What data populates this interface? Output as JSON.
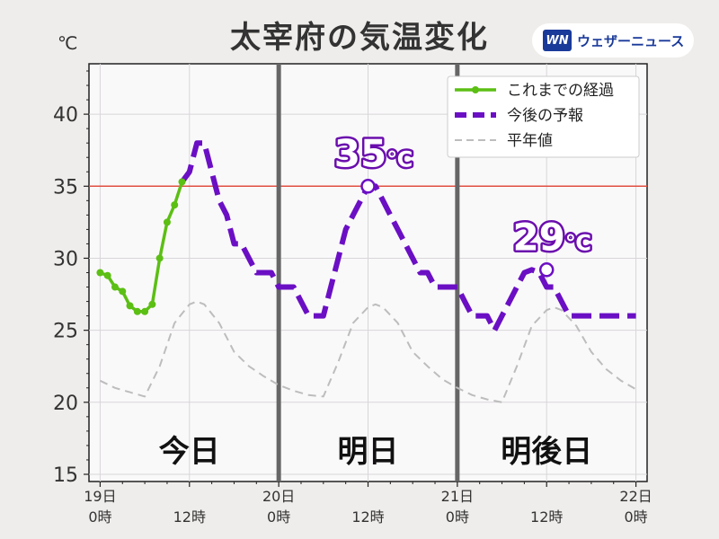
{
  "title": "太宰府の気温変化",
  "unit": "℃",
  "badge": {
    "logo": "WN",
    "text": "ウェザーニュース"
  },
  "colors": {
    "observed": "#5cbf14",
    "forecast": "#6b0fc4",
    "normal": "#bdbdbd",
    "threshold": "#e05040",
    "divider": "#666666",
    "plot_bg": "#faf9fa"
  },
  "chart_data": {
    "type": "line",
    "title": "太宰府の気温変化",
    "ylabel": "℃",
    "ylim": [
      14.5,
      43.5
    ],
    "xlim": [
      -1.5,
      73.5
    ],
    "yticks": [
      15,
      20,
      25,
      30,
      35,
      40
    ],
    "grid": true,
    "legend_position": "top-right",
    "x_ticks": [
      {
        "x": 0,
        "top": "19日",
        "bottom": "0時"
      },
      {
        "x": 12,
        "top": "",
        "bottom": "12時"
      },
      {
        "x": 24,
        "top": "20日",
        "bottom": "0時"
      },
      {
        "x": 36,
        "top": "",
        "bottom": "12時"
      },
      {
        "x": 48,
        "top": "21日",
        "bottom": "0時"
      },
      {
        "x": 60,
        "top": "",
        "bottom": "12時"
      },
      {
        "x": 72,
        "top": "22日",
        "bottom": "0時"
      }
    ],
    "day_dividers": [
      24,
      48
    ],
    "threshold": 35,
    "period_labels": [
      {
        "label": "今日",
        "x": 12
      },
      {
        "label": "明日",
        "x": 36
      },
      {
        "label": "明後日",
        "x": 60
      }
    ],
    "peak_labels": [
      {
        "x": 36,
        "y": 35,
        "value": "35",
        "unit": "℃"
      },
      {
        "x": 60,
        "y": 29.2,
        "value": "29",
        "unit": "℃"
      }
    ],
    "series": [
      {
        "name": "これまでの経過",
        "style": "observed",
        "x": [
          0,
          1,
          2,
          3,
          4,
          5,
          6,
          7,
          8,
          9,
          10,
          11
        ],
        "y": [
          29.0,
          28.8,
          28.0,
          27.7,
          26.7,
          26.3,
          26.3,
          26.8,
          30.0,
          32.5,
          33.7,
          35.3
        ]
      },
      {
        "name": "今後の予報",
        "style": "forecast",
        "x": [
          11,
          12,
          13,
          14,
          15,
          16,
          17,
          18,
          19,
          20,
          21,
          22,
          23,
          24,
          25,
          26,
          27,
          28,
          29,
          30,
          31,
          32,
          33,
          34,
          35,
          36,
          37,
          38,
          39,
          40,
          41,
          42,
          43,
          44,
          45,
          46,
          47,
          48,
          49,
          50,
          51,
          52,
          53,
          54,
          55,
          56,
          57,
          58,
          59,
          60,
          61,
          62,
          63,
          64,
          65,
          66,
          67,
          68,
          69,
          70,
          71,
          72
        ],
        "y": [
          35.3,
          36.0,
          38.0,
          38.0,
          36.0,
          34.0,
          33.0,
          31.0,
          31.0,
          30.0,
          29.0,
          29.0,
          29.0,
          28.0,
          28.0,
          28.0,
          27.0,
          26.0,
          26.0,
          26.0,
          28.0,
          30.0,
          32.0,
          33.0,
          34.0,
          35.0,
          35.0,
          34.0,
          33.0,
          32.0,
          31.0,
          30.0,
          29.0,
          29.0,
          28.0,
          28.0,
          28.0,
          28.0,
          27.0,
          26.0,
          26.0,
          26.0,
          25.0,
          26.0,
          27.0,
          28.0,
          29.0,
          29.2,
          29.0,
          28.0,
          28.0,
          27.0,
          26.0,
          26.0,
          26.0,
          26.0,
          26.0,
          26.0,
          26.0,
          26.0,
          26.0,
          26.0
        ]
      },
      {
        "name": "平年値",
        "style": "normal",
        "x": [
          0,
          2,
          4,
          6,
          8,
          10,
          12,
          13,
          14,
          16,
          18,
          20,
          22,
          24,
          26,
          28,
          30,
          32,
          34,
          36,
          37,
          38,
          40,
          42,
          44,
          46,
          48,
          50,
          52,
          54,
          56,
          58,
          60,
          61,
          62,
          64,
          66,
          68,
          70,
          72
        ],
        "y": [
          21.5,
          21.0,
          20.7,
          20.4,
          22.5,
          25.5,
          26.8,
          27.0,
          26.8,
          25.5,
          23.5,
          22.5,
          21.8,
          21.2,
          20.8,
          20.5,
          20.4,
          22.8,
          25.5,
          26.6,
          26.8,
          26.6,
          25.5,
          23.5,
          22.5,
          21.6,
          21.0,
          20.5,
          20.2,
          20.0,
          22.5,
          25.3,
          26.4,
          26.6,
          26.4,
          25.3,
          23.5,
          22.3,
          21.5,
          20.9
        ]
      }
    ]
  }
}
